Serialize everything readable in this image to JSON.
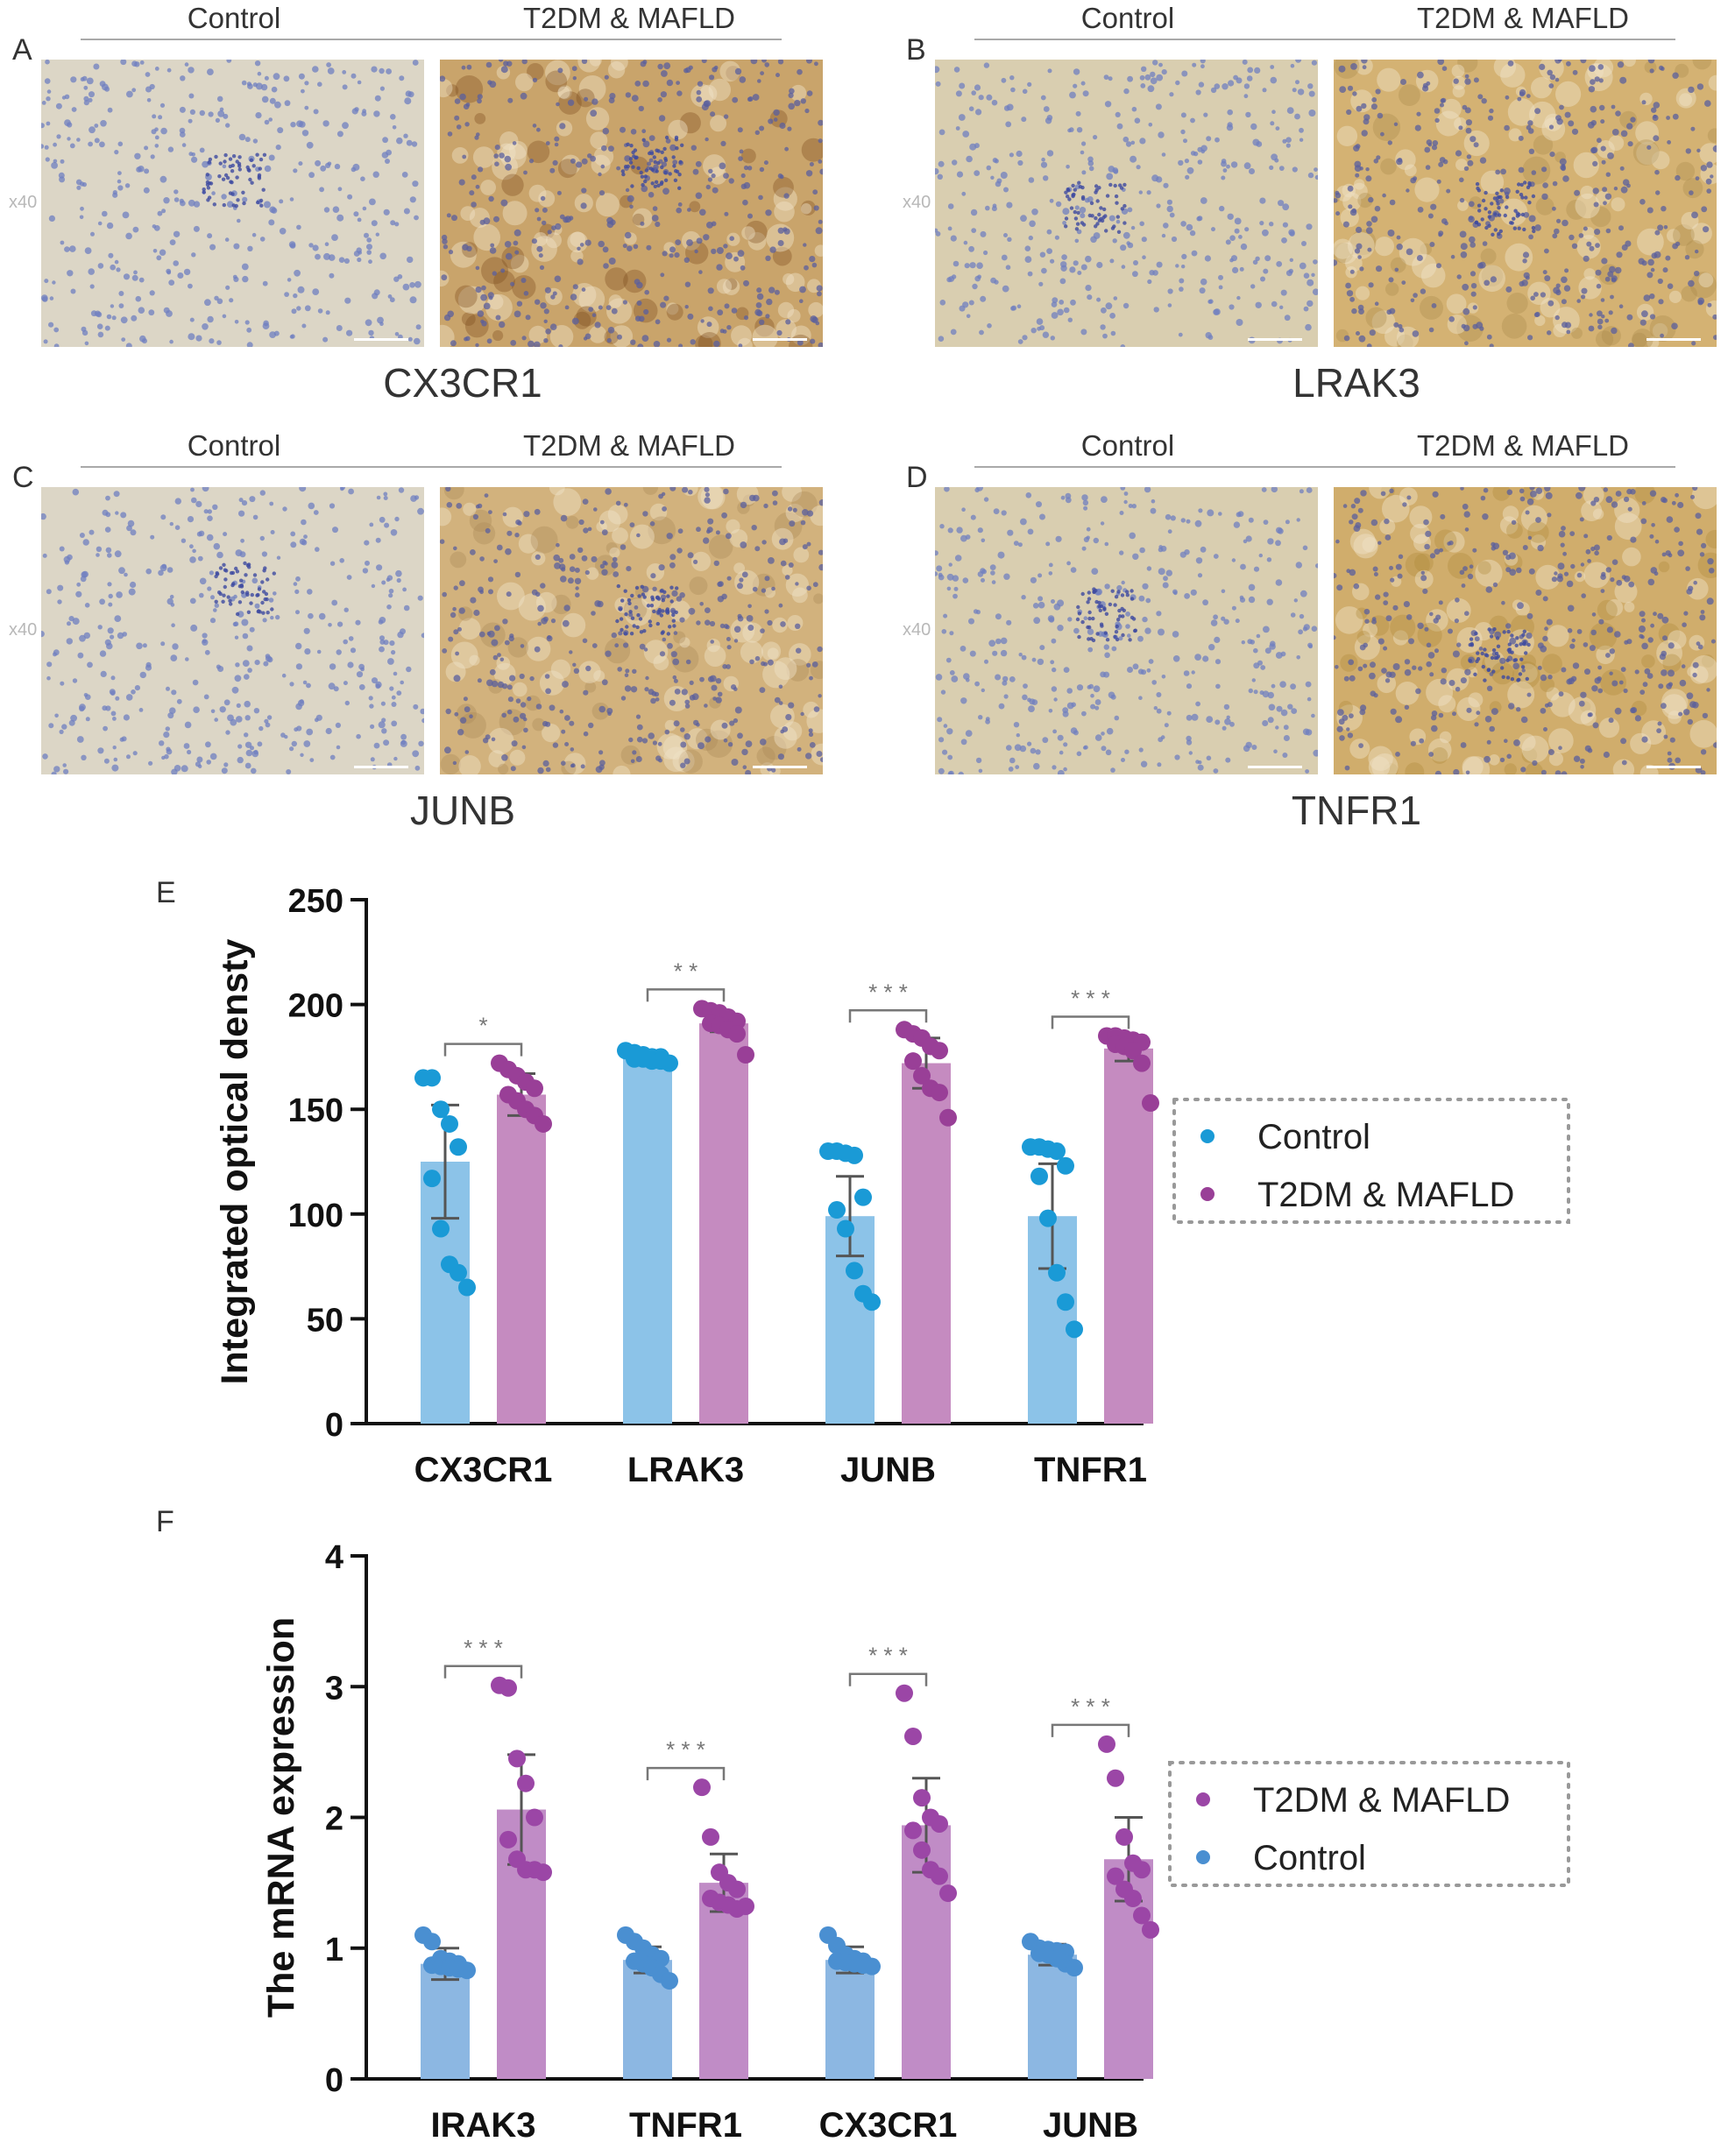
{
  "figure": {
    "panels_ihc": [
      {
        "letter": "A",
        "control_label": "Control",
        "case_label": "T2DM & MAFLD",
        "magnification": "x40",
        "gene": "CX3CR1",
        "case_tint": "#c9a46b",
        "case_dark": "#7a4a1e"
      },
      {
        "letter": "B",
        "control_label": "Control",
        "case_label": "T2DM & MAFLD",
        "magnification": "x40",
        "gene": "LRAK3",
        "case_tint": "#d4b273",
        "case_dark": "#a98a4a"
      },
      {
        "letter": "C",
        "control_label": "Control",
        "case_label": "T2DM & MAFLD",
        "magnification": "x40",
        "gene": "JUNB",
        "case_tint": "#d2b27d",
        "case_dark": "#a98856"
      },
      {
        "letter": "D",
        "control_label": "Control",
        "case_label": "T2DM & MAFLD",
        "magnification": "x40",
        "gene": "TNFR1",
        "case_tint": "#d0ad6c",
        "case_dark": "#b08a3a"
      }
    ]
  },
  "chart_data": [
    {
      "panel": "E",
      "type": "bar",
      "ylabel": "Integrated optical densty",
      "ylim": [
        0,
        250
      ],
      "yticks": [
        0,
        50,
        100,
        150,
        200,
        250
      ],
      "categories": [
        "CX3CR1",
        "LRAK3",
        "JUNB",
        "TNFR1"
      ],
      "significance": [
        "*",
        "* *",
        "* * *",
        "* * *"
      ],
      "series": [
        {
          "name": "Control",
          "bar_color": "#8cc3e8",
          "dot_color": "#1a9ad6",
          "values": [
            125,
            174,
            99,
            99
          ],
          "errors": [
            27,
            3,
            19,
            25
          ],
          "points": [
            [
              165,
              165,
              150,
              143,
              132,
              117,
              93,
              76,
              72,
              65
            ],
            [
              178,
              177,
              176,
              175,
              175,
              174,
              174,
              173,
              173,
              172
            ],
            [
              130,
              130,
              129,
              128,
              108,
              102,
              93,
              73,
              62,
              58
            ],
            [
              132,
              132,
              131,
              130,
              123,
              118,
              98,
              72,
              58,
              45
            ]
          ]
        },
        {
          "name": "T2DM & MAFLD",
          "bar_color": "#c58bc0",
          "dot_color": "#993f97",
          "values": [
            157,
            191,
            172,
            179
          ],
          "errors": [
            10,
            4,
            12,
            6
          ],
          "points": [
            [
              172,
              169,
              166,
              163,
              160,
              157,
              154,
              150,
              147,
              143
            ],
            [
              198,
              197,
              196,
              194,
              192,
              191,
              190,
              188,
              186,
              176
            ],
            [
              188,
              186,
              184,
              180,
              178,
              173,
              166,
              160,
              158,
              146
            ],
            [
              185,
              185,
              184,
              183,
              182,
              181,
              180,
              178,
              172,
              153
            ]
          ]
        }
      ],
      "legend": {
        "position": "right",
        "entries": [
          "Control",
          "T2DM & MAFLD"
        ]
      }
    },
    {
      "panel": "F",
      "type": "bar",
      "ylabel": "The mRNA expression",
      "ylim": [
        0,
        4
      ],
      "yticks": [
        0,
        1,
        2,
        3,
        4
      ],
      "categories": [
        "IRAK3",
        "TNFR1",
        "CX3CR1",
        "JUNB"
      ],
      "significance": [
        "* * *",
        "* * *",
        "* * *",
        "* * *"
      ],
      "series": [
        {
          "name": "Control",
          "bar_color": "#8cb7e2",
          "dot_color": "#4a8fd1",
          "values": [
            0.88,
            0.91,
            0.91,
            0.95
          ],
          "errors": [
            0.12,
            0.1,
            0.1,
            0.08
          ],
          "points": [
            [
              1.1,
              1.05,
              0.92,
              0.9,
              0.88,
              0.87,
              0.86,
              0.85,
              0.84,
              0.83
            ],
            [
              1.1,
              1.05,
              1.0,
              0.95,
              0.92,
              0.9,
              0.88,
              0.85,
              0.8,
              0.75
            ],
            [
              1.1,
              1.02,
              0.95,
              0.92,
              0.9,
              0.9,
              0.89,
              0.88,
              0.87,
              0.86
            ],
            [
              1.05,
              1.0,
              0.99,
              0.98,
              0.97,
              0.96,
              0.95,
              0.92,
              0.88,
              0.85
            ]
          ]
        },
        {
          "name": "T2DM & MAFLD",
          "bar_color": "#c08cc6",
          "dot_color": "#9b46a6",
          "values": [
            2.06,
            1.5,
            1.94,
            1.68
          ],
          "errors": [
            0.42,
            0.22,
            0.36,
            0.32
          ],
          "points": [
            [
              3.01,
              2.99,
              2.45,
              2.26,
              2.0,
              1.83,
              1.68,
              1.6,
              1.6,
              1.58
            ],
            [
              2.23,
              1.85,
              1.58,
              1.5,
              1.45,
              1.38,
              1.35,
              1.33,
              1.3,
              1.32
            ],
            [
              2.95,
              2.62,
              2.15,
              2.0,
              1.95,
              1.9,
              1.75,
              1.6,
              1.55,
              1.42
            ],
            [
              2.56,
              2.3,
              1.85,
              1.65,
              1.6,
              1.55,
              1.45,
              1.38,
              1.25,
              1.14
            ]
          ]
        }
      ],
      "legend": {
        "position": "right",
        "entries": [
          "T2DM & MAFLD",
          "Control"
        ]
      }
    }
  ]
}
